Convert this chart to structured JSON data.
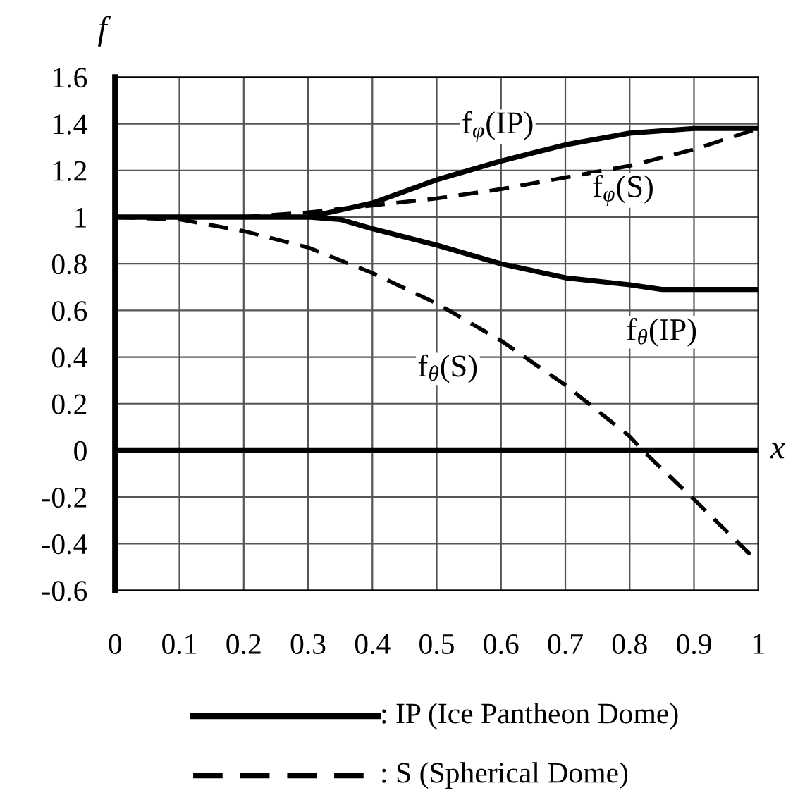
{
  "chart_data": {
    "type": "line",
    "xlabel": "x",
    "ylabel": "f",
    "xlim": [
      0,
      1
    ],
    "ylim": [
      -0.6,
      1.6
    ],
    "xticks": [
      0,
      0.1,
      0.2,
      0.3,
      0.4,
      0.5,
      0.6,
      0.7,
      0.8,
      0.9,
      1
    ],
    "yticks": [
      {
        "value": -0.6,
        "label": "-0.6"
      },
      {
        "value": -0.4,
        "label": "-0.4"
      },
      {
        "value": -0.2,
        "label": "-0.2"
      },
      0,
      0.2,
      0.4,
      0.6,
      0.8,
      1,
      1.2,
      1.4,
      1.6
    ],
    "grid": true,
    "ref_lines": [
      {
        "axis": "y",
        "value": 0,
        "color": "#000000"
      }
    ],
    "series": [
      {
        "name": "f$_{φ}$(IP)",
        "color": "#000000",
        "line_style": "solid",
        "x": [
          0,
          0.1,
          0.2,
          0.3,
          0.4,
          0.5,
          0.6,
          0.7,
          0.8,
          0.9,
          1
        ],
        "values": [
          1,
          1,
          1,
          1.0,
          1.06,
          1.16,
          1.24,
          1.31,
          1.36,
          1.38,
          1.38
        ]
      },
      {
        "name": "f$_{φ}$(S)",
        "color": "#000000",
        "line_style": "dashed",
        "x": [
          0,
          0.1,
          0.2,
          0.3,
          0.4,
          0.5,
          0.6,
          0.7,
          0.8,
          0.9,
          1
        ],
        "values": [
          1,
          1,
          1,
          1.02,
          1.05,
          1.08,
          1.12,
          1.17,
          1.22,
          1.29,
          1.38
        ]
      },
      {
        "name": "f$_{θ}$(IP)",
        "color": "#000000",
        "line_style": "solid",
        "x": [
          0,
          0.1,
          0.2,
          0.3,
          0.35,
          0.4,
          0.5,
          0.6,
          0.7,
          0.8,
          0.85,
          1
        ],
        "values": [
          1,
          1,
          1,
          1,
          0.99,
          0.95,
          0.88,
          0.8,
          0.74,
          0.71,
          0.69,
          0.69
        ]
      },
      {
        "name": "f$_{θ}$(S)",
        "color": "#000000",
        "line_style": "dashed",
        "x": [
          0,
          0.1,
          0.2,
          0.3,
          0.4,
          0.5,
          0.6,
          0.7,
          0.8,
          0.82,
          0.9,
          1
        ],
        "values": [
          1,
          0.99,
          0.94,
          0.87,
          0.76,
          0.63,
          0.47,
          0.28,
          0.06,
          0,
          -0.21,
          -0.48
        ]
      }
    ],
    "annotations": [
      ": IP (Ice Pantheon Dome)",
      ": S (Spherical Dome)"
    ]
  }
}
